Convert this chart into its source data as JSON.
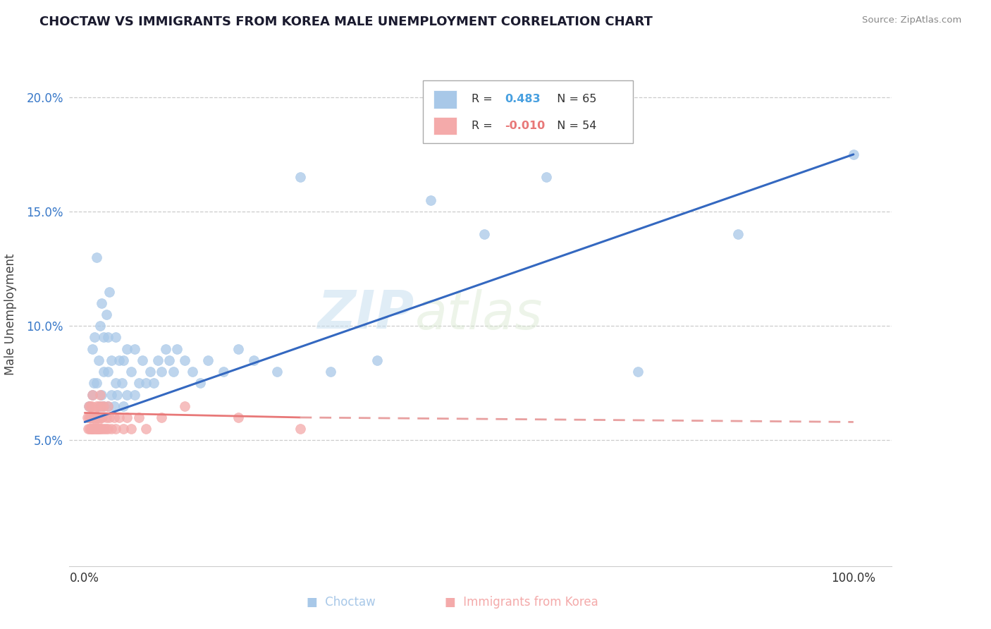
{
  "title": "CHOCTAW VS IMMIGRANTS FROM KOREA MALE UNEMPLOYMENT CORRELATION CHART",
  "source": "Source: ZipAtlas.com",
  "ylabel": "Male Unemployment",
  "ytick_labels": [
    "5.0%",
    "10.0%",
    "15.0%",
    "20.0%"
  ],
  "ytick_vals": [
    0.05,
    0.1,
    0.15,
    0.2
  ],
  "ylim": [
    -0.005,
    0.215
  ],
  "xlim": [
    -0.02,
    1.05
  ],
  "watermark_zip": "ZIP",
  "watermark_atlas": "atlas",
  "legend_blue_r": "R =",
  "legend_blue_val": " 0.483",
  "legend_blue_n": "N = 65",
  "legend_pink_r": "R =",
  "legend_pink_val": "-0.010",
  "legend_pink_n": "N = 54",
  "color_blue": "#A8C8E8",
  "color_pink": "#F4AAAA",
  "color_blue_line": "#3468C0",
  "color_pink_line_solid": "#E87878",
  "color_pink_line_dash": "#E8A0A0",
  "color_blue_text": "#3878C8",
  "color_pink_text": "#E87878",
  "color_blue_legend_val": "#48A0E0",
  "color_pink_legend_val": "#E87878",
  "choctaw_x": [
    0.005,
    0.008,
    0.01,
    0.01,
    0.012,
    0.013,
    0.015,
    0.015,
    0.015,
    0.018,
    0.02,
    0.02,
    0.022,
    0.022,
    0.025,
    0.025,
    0.025,
    0.028,
    0.03,
    0.03,
    0.03,
    0.032,
    0.035,
    0.035,
    0.038,
    0.04,
    0.04,
    0.042,
    0.045,
    0.048,
    0.05,
    0.05,
    0.055,
    0.055,
    0.06,
    0.065,
    0.065,
    0.07,
    0.075,
    0.08,
    0.085,
    0.09,
    0.095,
    0.1,
    0.105,
    0.11,
    0.115,
    0.12,
    0.13,
    0.14,
    0.15,
    0.16,
    0.18,
    0.2,
    0.22,
    0.25,
    0.28,
    0.32,
    0.38,
    0.45,
    0.52,
    0.6,
    0.72,
    0.85,
    1.0
  ],
  "choctaw_y": [
    0.065,
    0.06,
    0.07,
    0.09,
    0.075,
    0.095,
    0.06,
    0.075,
    0.13,
    0.085,
    0.065,
    0.1,
    0.07,
    0.11,
    0.065,
    0.08,
    0.095,
    0.105,
    0.065,
    0.08,
    0.095,
    0.115,
    0.07,
    0.085,
    0.065,
    0.075,
    0.095,
    0.07,
    0.085,
    0.075,
    0.065,
    0.085,
    0.07,
    0.09,
    0.08,
    0.07,
    0.09,
    0.075,
    0.085,
    0.075,
    0.08,
    0.075,
    0.085,
    0.08,
    0.09,
    0.085,
    0.08,
    0.09,
    0.085,
    0.08,
    0.075,
    0.085,
    0.08,
    0.09,
    0.085,
    0.08,
    0.165,
    0.08,
    0.085,
    0.155,
    0.14,
    0.165,
    0.08,
    0.14,
    0.175
  ],
  "korea_x": [
    0.003,
    0.004,
    0.005,
    0.005,
    0.006,
    0.007,
    0.007,
    0.008,
    0.008,
    0.009,
    0.009,
    0.01,
    0.01,
    0.01,
    0.011,
    0.012,
    0.012,
    0.013,
    0.013,
    0.014,
    0.015,
    0.015,
    0.015,
    0.016,
    0.017,
    0.018,
    0.018,
    0.018,
    0.02,
    0.02,
    0.021,
    0.022,
    0.022,
    0.023,
    0.025,
    0.025,
    0.027,
    0.028,
    0.03,
    0.03,
    0.032,
    0.035,
    0.038,
    0.04,
    0.045,
    0.05,
    0.055,
    0.06,
    0.07,
    0.08,
    0.1,
    0.13,
    0.2,
    0.28
  ],
  "korea_y": [
    0.06,
    0.055,
    0.06,
    0.065,
    0.055,
    0.06,
    0.065,
    0.055,
    0.06,
    0.055,
    0.065,
    0.055,
    0.06,
    0.07,
    0.055,
    0.058,
    0.062,
    0.055,
    0.06,
    0.055,
    0.055,
    0.06,
    0.065,
    0.058,
    0.055,
    0.055,
    0.06,
    0.065,
    0.055,
    0.07,
    0.06,
    0.055,
    0.065,
    0.06,
    0.055,
    0.065,
    0.055,
    0.06,
    0.055,
    0.065,
    0.06,
    0.055,
    0.06,
    0.055,
    0.06,
    0.055,
    0.06,
    0.055,
    0.06,
    0.055,
    0.06,
    0.065,
    0.06,
    0.055
  ],
  "blue_line_x0": 0.0,
  "blue_line_y0": 0.058,
  "blue_line_x1": 1.0,
  "blue_line_y1": 0.175,
  "pink_line_solid_x0": 0.0,
  "pink_line_solid_y0": 0.062,
  "pink_line_solid_x1": 0.28,
  "pink_line_solid_y1": 0.06,
  "pink_line_dash_x0": 0.28,
  "pink_line_dash_y0": 0.06,
  "pink_line_dash_x1": 1.0,
  "pink_line_dash_y1": 0.058
}
